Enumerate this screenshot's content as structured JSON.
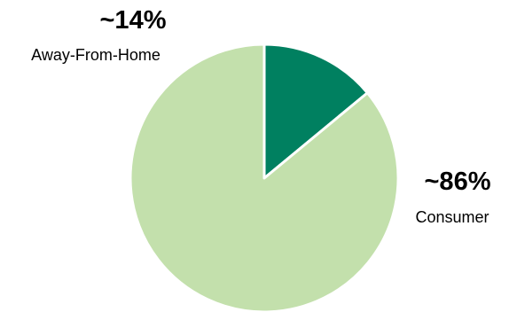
{
  "chart_data": {
    "type": "pie",
    "slices": [
      {
        "label": "Away-From-Home",
        "value_label": "~14%",
        "value": 14,
        "color": "#008060"
      },
      {
        "label": "Consumer",
        "value_label": "~86%",
        "value": 86,
        "color": "#c3e0ac"
      }
    ],
    "start_angle_deg": 0,
    "direction": "clockwise"
  }
}
